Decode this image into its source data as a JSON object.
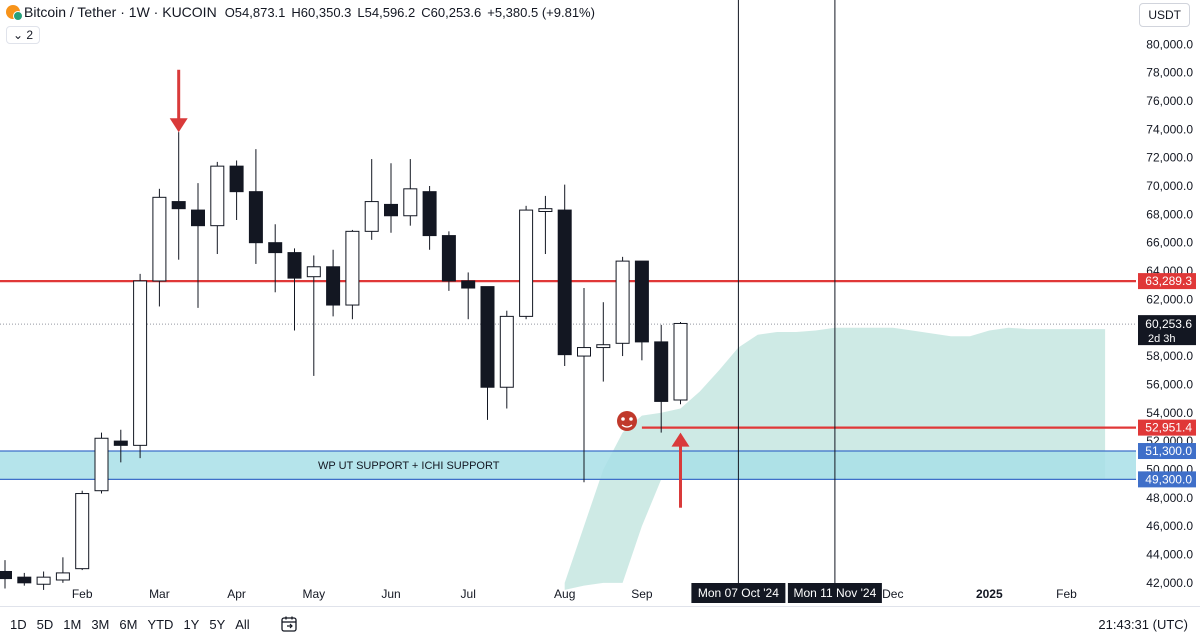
{
  "header": {
    "symbol": "Bitcoin / Tether · 1W · KUCOIN",
    "open": "O54,873.1",
    "high": "H60,350.3",
    "low": "L54,596.2",
    "close": "C60,253.6",
    "change": "+5,380.5 (+9.81%)",
    "indicator_toggle": "⌄ 2",
    "currency": "USDT"
  },
  "bottom_bar": {
    "ranges": [
      "1D",
      "5D",
      "1M",
      "3M",
      "6M",
      "YTD",
      "1Y",
      "5Y",
      "All"
    ],
    "clock": "21:43:31 (UTC)"
  },
  "colors": {
    "resistance": "#e03838",
    "support_band": "#a8dfe8",
    "support_border": "#3f6fc9",
    "cloud": "#c9e8e2",
    "arrow": "#d93a3a"
  },
  "chart_data": {
    "type": "candlestick",
    "timeframe": "1W",
    "ylim": [
      41000,
      81500
    ],
    "y_ticks": [
      42000,
      44000,
      46000,
      48000,
      50000,
      52000,
      54000,
      56000,
      58000,
      60000,
      62000,
      64000,
      66000,
      68000,
      70000,
      72000,
      74000,
      76000,
      78000,
      80000
    ],
    "y_tick_labels": [
      "42,000.0",
      "44,000.0",
      "46,000.0",
      "48,000.0",
      "50,000.0",
      "52,000.0",
      "54,000.0",
      "56,000.0",
      "58,000.0",
      "60,000.0",
      "62,000.0",
      "64,000.0",
      "66,000.0",
      "68,000.0",
      "70,000.0",
      "72,000.0",
      "74,000.0",
      "76,000.0",
      "78,000.0",
      "80,000.0"
    ],
    "x_tick_labels": [
      "Feb",
      "Mar",
      "Apr",
      "May",
      "Jun",
      "Jul",
      "Aug",
      "Sep",
      "Dec",
      "2025",
      "Feb"
    ],
    "x_tick_index": [
      4,
      8,
      12,
      16,
      20,
      24,
      29,
      33,
      46,
      51,
      55
    ],
    "candles": [
      {
        "o": 42800,
        "h": 43600,
        "l": 41600,
        "c": 42300
      },
      {
        "o": 42400,
        "h": 42700,
        "l": 41800,
        "c": 42000
      },
      {
        "o": 41900,
        "h": 42800,
        "l": 41500,
        "c": 42400
      },
      {
        "o": 42200,
        "h": 43800,
        "l": 42000,
        "c": 42700
      },
      {
        "o": 43000,
        "h": 48500,
        "l": 42900,
        "c": 48300
      },
      {
        "o": 48500,
        "h": 52600,
        "l": 48300,
        "c": 52200
      },
      {
        "o": 52000,
        "h": 52800,
        "l": 50500,
        "c": 51700
      },
      {
        "o": 51700,
        "h": 63800,
        "l": 50800,
        "c": 63300
      },
      {
        "o": 63300,
        "h": 69800,
        "l": 61500,
        "c": 69200
      },
      {
        "o": 68900,
        "h": 73800,
        "l": 64800,
        "c": 68400
      },
      {
        "o": 68300,
        "h": 70200,
        "l": 61400,
        "c": 67200
      },
      {
        "o": 67200,
        "h": 71700,
        "l": 65200,
        "c": 71400
      },
      {
        "o": 71400,
        "h": 71800,
        "l": 67600,
        "c": 69600
      },
      {
        "o": 69600,
        "h": 72600,
        "l": 64500,
        "c": 66000
      },
      {
        "o": 66000,
        "h": 67300,
        "l": 62500,
        "c": 65300
      },
      {
        "o": 65300,
        "h": 65600,
        "l": 59800,
        "c": 63500
      },
      {
        "o": 63600,
        "h": 65100,
        "l": 56600,
        "c": 64300
      },
      {
        "o": 64300,
        "h": 65500,
        "l": 60800,
        "c": 61600
      },
      {
        "o": 61600,
        "h": 66900,
        "l": 60600,
        "c": 66800
      },
      {
        "o": 66800,
        "h": 71900,
        "l": 66200,
        "c": 68900
      },
      {
        "o": 68700,
        "h": 71600,
        "l": 66700,
        "c": 67900
      },
      {
        "o": 67900,
        "h": 71900,
        "l": 67200,
        "c": 69800
      },
      {
        "o": 69600,
        "h": 70000,
        "l": 65500,
        "c": 66500
      },
      {
        "o": 66500,
        "h": 66800,
        "l": 62600,
        "c": 63300
      },
      {
        "o": 63300,
        "h": 63900,
        "l": 60600,
        "c": 62800
      },
      {
        "o": 62900,
        "h": 62900,
        "l": 53500,
        "c": 55800
      },
      {
        "o": 55800,
        "h": 61200,
        "l": 54300,
        "c": 60800
      },
      {
        "o": 60800,
        "h": 68600,
        "l": 60600,
        "c": 68300
      },
      {
        "o": 68200,
        "h": 69300,
        "l": 65200,
        "c": 68400
      },
      {
        "o": 68300,
        "h": 70100,
        "l": 57300,
        "c": 58100
      },
      {
        "o": 58000,
        "h": 62800,
        "l": 49100,
        "c": 58600
      },
      {
        "o": 58600,
        "h": 61800,
        "l": 56200,
        "c": 58800
      },
      {
        "o": 58900,
        "h": 65000,
        "l": 58000,
        "c": 64700
      },
      {
        "o": 64700,
        "h": 64700,
        "l": 57700,
        "c": 59000
      },
      {
        "o": 59000,
        "h": 60200,
        "l": 52600,
        "c": 54800
      },
      {
        "o": 54900,
        "h": 60400,
        "l": 54600,
        "c": 60300
      }
    ],
    "ichimoku_cloud": {
      "x_index": [
        29,
        30,
        31,
        32,
        33,
        34,
        35,
        36,
        37,
        38,
        39,
        40,
        41,
        42,
        43,
        44,
        45,
        46,
        47,
        48,
        49,
        50,
        51,
        52,
        53,
        54,
        55,
        56,
        57
      ],
      "upper": [
        42000,
        46000,
        50000,
        52600,
        53800,
        54000,
        54300,
        55500,
        57000,
        58600,
        59500,
        59700,
        59700,
        59800,
        60000,
        60000,
        60000,
        60000,
        59800,
        59600,
        59400,
        59400,
        59800,
        60000,
        59900,
        59900,
        59900,
        59900,
        59900
      ],
      "lower": [
        41500,
        41800,
        42000,
        42000,
        46000,
        49300,
        49300,
        49300,
        49300,
        49300,
        49300,
        49300,
        49300,
        49300,
        49300,
        49300,
        49300,
        49300,
        49300,
        49300,
        49300,
        49300,
        49300,
        49300,
        49300,
        49300,
        49300,
        49300,
        49300
      ]
    },
    "horizontal_levels": [
      {
        "price": 63289.3,
        "label": "63,289.3",
        "color": "#e03838",
        "from_index": 0
      },
      {
        "price": 52951.4,
        "label": "52,951.4",
        "color": "#e03838",
        "from_index": 33
      }
    ],
    "support_zone": {
      "low": 49300,
      "high": 51300,
      "low_label": "49,300.0",
      "high_label": "51,300.0",
      "text": "WP UT SUPPORT  + ICHI SUPPORT"
    },
    "last_price": {
      "price": 60253.6,
      "label": "60,253.6",
      "countdown": "2d 3h"
    },
    "vertical_markers": [
      {
        "x_index": 38,
        "label": "Mon 07 Oct '24"
      },
      {
        "x_index": 43,
        "label": "Mon 11 Nov '24"
      }
    ],
    "arrows": [
      {
        "x_index": 9,
        "direction": "down",
        "from_price": 78200,
        "to_price": 74500
      },
      {
        "x_index": 35,
        "direction": "up",
        "from_price": 47300,
        "to_price": 52600
      }
    ]
  }
}
